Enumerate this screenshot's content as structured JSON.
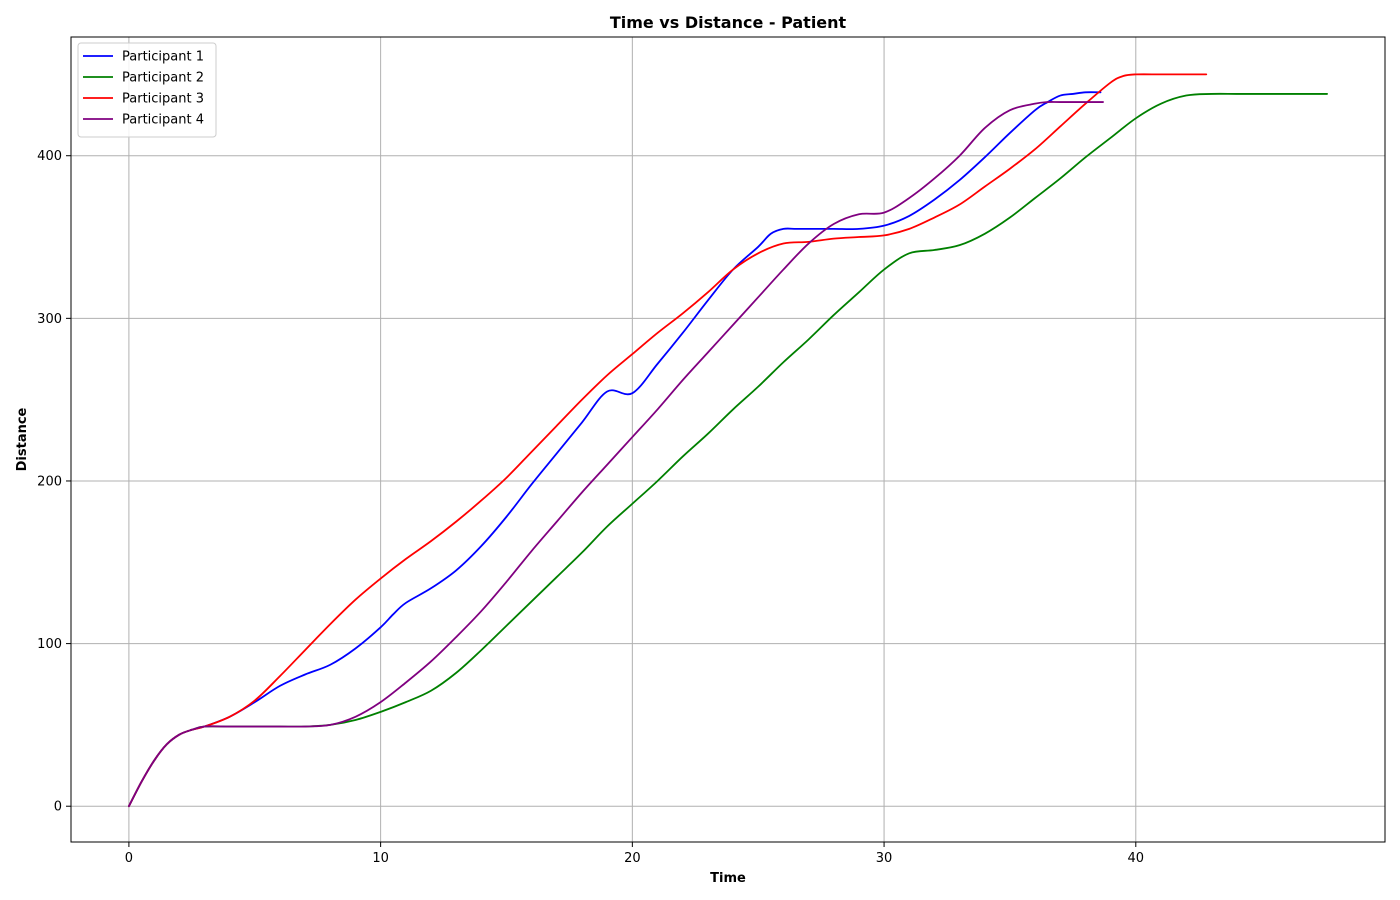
{
  "chart_data": {
    "type": "line",
    "title": "Time vs Distance - Patient",
    "xlabel": "Time",
    "ylabel": "Distance",
    "xlim": [
      -2.3,
      49.9
    ],
    "ylim": [
      -22,
      473
    ],
    "xticks": [
      0,
      10,
      20,
      30,
      40
    ],
    "yticks": [
      0,
      100,
      200,
      300,
      400
    ],
    "grid": true,
    "legend_position": "upper-left",
    "series": [
      {
        "name": "Participant 1",
        "color": "#0000ff",
        "x": [
          0,
          0.5,
          1,
          1.5,
          2,
          2.5,
          3,
          4,
          5,
          6,
          7,
          8,
          9,
          10,
          10.5,
          11,
          12,
          13,
          14,
          15,
          16,
          17,
          18,
          19,
          20,
          21,
          22,
          23,
          24,
          25,
          25.5,
          26,
          26.5,
          27,
          28,
          29,
          30,
          31,
          32,
          33,
          34,
          35,
          36,
          36.5,
          37,
          37.5,
          38,
          38.6
        ],
        "y": [
          0,
          15,
          28,
          38,
          44,
          47,
          49,
          55,
          64,
          74,
          81,
          87,
          97,
          110,
          118,
          125,
          134,
          145,
          160,
          178,
          198,
          217,
          236,
          255,
          254,
          272,
          291,
          311,
          330,
          344,
          352,
          355,
          355,
          355,
          355,
          355,
          357,
          363,
          373,
          385,
          399,
          414,
          428,
          433,
          437,
          438,
          439,
          439
        ]
      },
      {
        "name": "Participant 2",
        "color": "#008000",
        "x": [
          0,
          0.5,
          1,
          1.5,
          2,
          2.5,
          3,
          4,
          5,
          6,
          7,
          8,
          9,
          10,
          11,
          12,
          13,
          14,
          15,
          16,
          17,
          18,
          19,
          20,
          21,
          22,
          23,
          24,
          25,
          26,
          27,
          28,
          29,
          30,
          31,
          32,
          33,
          34,
          35,
          36,
          37,
          38,
          39,
          40,
          41,
          42,
          43,
          44,
          45,
          46,
          47,
          47.6
        ],
        "y": [
          0,
          15,
          28,
          38,
          44,
          47,
          49,
          49,
          49,
          49,
          49,
          50,
          53,
          58,
          64,
          71,
          82,
          96,
          111,
          126,
          141,
          156,
          172,
          186,
          200,
          215,
          229,
          244,
          258,
          273,
          287,
          302,
          316,
          330,
          340,
          342,
          345,
          352,
          362,
          374,
          386,
          399,
          411,
          423,
          432,
          437,
          438,
          438,
          438,
          438,
          438,
          438
        ]
      },
      {
        "name": "Participant 3",
        "color": "#ff0000",
        "x": [
          0,
          0.5,
          1,
          1.5,
          2,
          2.5,
          3,
          4,
          5,
          6,
          7,
          8,
          9,
          10,
          11,
          12,
          13,
          14,
          15,
          16,
          17,
          18,
          19,
          20,
          21,
          22,
          23,
          24,
          25,
          26,
          27,
          28,
          29,
          30,
          31,
          32,
          33,
          34,
          35,
          36,
          37,
          38,
          39,
          39.5,
          40,
          41,
          42,
          42.8
        ],
        "y": [
          0,
          15,
          28,
          38,
          44,
          47,
          49,
          55,
          65,
          80,
          96,
          112,
          127,
          140,
          152,
          163,
          175,
          188,
          202,
          218,
          234,
          250,
          265,
          278,
          291,
          303,
          316,
          330,
          340,
          346,
          347,
          349,
          350,
          351,
          355,
          362,
          370,
          381,
          392,
          404,
          418,
          432,
          445,
          449,
          450,
          450,
          450,
          450
        ]
      },
      {
        "name": "Participant 4",
        "color": "#800080",
        "x": [
          0,
          0.5,
          1,
          1.5,
          2,
          2.5,
          3,
          4,
          5,
          6,
          7,
          8,
          9,
          10,
          11,
          12,
          13,
          14,
          15,
          16,
          17,
          18,
          19,
          20,
          21,
          22,
          23,
          24,
          25,
          26,
          27,
          28,
          29,
          30,
          31,
          32,
          33,
          34,
          35,
          36,
          36.5,
          37,
          38,
          38.7
        ],
        "y": [
          0,
          15,
          28,
          38,
          44,
          47,
          49,
          49,
          49,
          49,
          49,
          50,
          55,
          64,
          76,
          89,
          104,
          120,
          138,
          157,
          175,
          193,
          210,
          227,
          244,
          262,
          279,
          296,
          313,
          330,
          346,
          358,
          364,
          365,
          374,
          386,
          400,
          417,
          428,
          432,
          433,
          433,
          433,
          433
        ]
      }
    ]
  }
}
